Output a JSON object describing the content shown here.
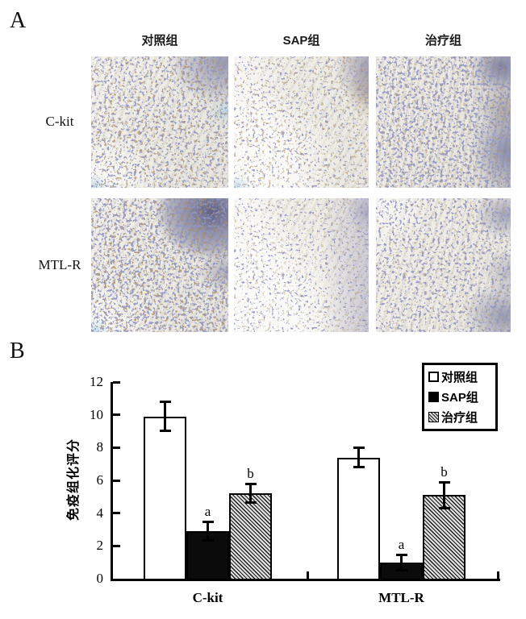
{
  "panel_a": {
    "label": "A",
    "column_headers": [
      "对照组",
      "SAP组",
      "治疗组"
    ],
    "row_labels": [
      "C-kit",
      "MTL-R"
    ],
    "tiles": [
      {
        "marker": "C-kit",
        "group": "对照组"
      },
      {
        "marker": "C-kit",
        "group": "SAP组"
      },
      {
        "marker": "C-kit",
        "group": "治疗组"
      },
      {
        "marker": "MTL-R",
        "group": "对照组"
      },
      {
        "marker": "MTL-R",
        "group": "SAP组"
      },
      {
        "marker": "MTL-R",
        "group": "治疗组"
      }
    ]
  },
  "panel_b": {
    "label": "B"
  },
  "chart_data": {
    "type": "bar",
    "title": "",
    "xlabel": "",
    "ylabel": "免疫组化评分",
    "categories": [
      "C-kit",
      "MTL-R"
    ],
    "series": [
      {
        "name": "对照组",
        "fill": "white",
        "values": [
          9.9,
          7.4
        ],
        "errors": [
          0.8,
          0.5
        ],
        "sig": [
          "",
          ""
        ]
      },
      {
        "name": "SAP组",
        "fill": "black",
        "values": [
          2.9,
          1.0
        ],
        "errors": [
          0.5,
          0.4
        ],
        "sig": [
          "a",
          "a"
        ]
      },
      {
        "name": "治疗组",
        "fill": "hatch",
        "values": [
          5.2,
          5.1
        ],
        "errors": [
          0.5,
          0.7
        ],
        "sig": [
          "b",
          "b"
        ]
      }
    ],
    "ylim": [
      0,
      12
    ],
    "yticks": [
      0,
      2,
      4,
      6,
      8,
      10,
      12
    ],
    "grid": false,
    "legend_position": "top-right",
    "colors": {
      "axis": "#000000",
      "bar_white": "#ffffff",
      "bar_black": "#0b0b0b",
      "hatch_line": "#1a1a1a"
    }
  }
}
